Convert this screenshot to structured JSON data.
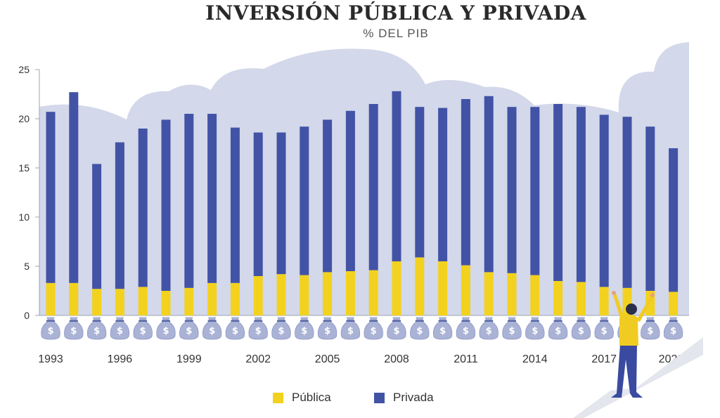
{
  "header": {
    "title": "INVERSIÓN PÚBLICA Y PRIVADA",
    "subtitle": "% DEL PIB"
  },
  "colors": {
    "publica": "#f2d21e",
    "privada": "#4253a6",
    "cloud": "#d3d8ea",
    "axis": "#9ea3b5"
  },
  "icons": [
    "money-bag-icon",
    "person-cheering-icon"
  ],
  "legend": {
    "publica_label": "Pública",
    "privada_label": "Privada"
  },
  "chart_data": {
    "type": "bar",
    "stacked": true,
    "years": [
      1993,
      1994,
      1995,
      1996,
      1997,
      1998,
      1999,
      2000,
      2001,
      2002,
      2003,
      2004,
      2005,
      2006,
      2007,
      2008,
      2009,
      2010,
      2011,
      2012,
      2013,
      2014,
      2015,
      2016,
      2017,
      2018,
      2019,
      2020
    ],
    "x_tick_labels": [
      "1993",
      "1996",
      "1999",
      "2002",
      "2005",
      "2008",
      "2011",
      "2014",
      "2017",
      "2020*"
    ],
    "x_tick_indices": [
      0,
      3,
      6,
      9,
      12,
      15,
      18,
      21,
      24,
      27
    ],
    "y_ticks": [
      0,
      5,
      10,
      15,
      20,
      25
    ],
    "y_tick_labels": [
      "0",
      "5",
      "10",
      "15",
      "20",
      "25"
    ],
    "ylim": [
      0,
      25
    ],
    "series": [
      {
        "name": "Pública",
        "values": [
          3.3,
          3.3,
          2.7,
          2.7,
          2.9,
          2.5,
          2.8,
          3.3,
          3.3,
          4.0,
          4.2,
          4.1,
          4.4,
          4.5,
          4.6,
          5.5,
          5.9,
          5.5,
          5.1,
          4.4,
          4.3,
          4.1,
          3.5,
          3.4,
          2.9,
          2.8,
          2.5,
          2.4
        ]
      },
      {
        "name": "Privada",
        "values": [
          17.4,
          19.4,
          12.7,
          14.9,
          16.1,
          17.4,
          17.7,
          17.2,
          15.8,
          14.6,
          14.4,
          15.1,
          15.5,
          16.3,
          16.9,
          17.3,
          15.3,
          15.6,
          16.9,
          17.9,
          16.9,
          17.1,
          18.0,
          17.8,
          17.5,
          17.4,
          16.7,
          14.6
        ]
      }
    ]
  }
}
